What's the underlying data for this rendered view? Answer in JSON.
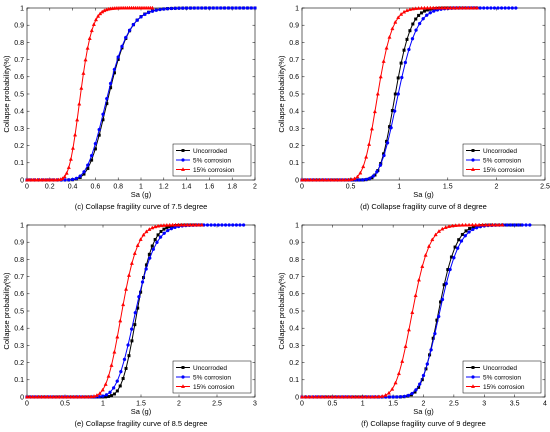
{
  "figure": {
    "ylabel": "Collapse probability(%)",
    "xlabel": "Sa (g)"
  },
  "legend": {
    "entries": [
      {
        "name": "Uncorroded",
        "color": "#000000",
        "marker": "square"
      },
      {
        "name": "5% corrosion",
        "color": "#0000ff",
        "marker": "circle"
      },
      {
        "name": "15% corrosion",
        "color": "#ff0000",
        "marker": "triangle"
      }
    ]
  },
  "chart_data": [
    {
      "type": "line",
      "title": "(c) Collapse fragility curve of 7.5 degree",
      "xlabel": "Sa (g)",
      "ylabel": "Collapse probability(%)",
      "xlim": [
        0,
        2
      ],
      "ylim": [
        0,
        1
      ],
      "xticks": [
        "0",
        "0.2",
        "0.4",
        "0.6",
        "0.8",
        "1",
        "1.2",
        "1.4",
        "1.6",
        "1.8",
        "2"
      ],
      "yticks": [
        "0",
        "0.1",
        "0.2",
        "0.3",
        "0.4",
        "0.5",
        "0.6",
        "0.7",
        "0.8",
        "0.9",
        "1"
      ],
      "legend_position": "bottom-right",
      "series": [
        {
          "name": "Uncorroded",
          "x_max": 2.0,
          "median": 0.72,
          "beta": 0.2
        },
        {
          "name": "5% corrosion",
          "x_max": 2.0,
          "median": 0.71,
          "beta": 0.21
        },
        {
          "name": "15% corrosion",
          "x_max": 1.1,
          "median": 0.47,
          "beta": 0.17
        }
      ]
    },
    {
      "type": "line",
      "title": "(d) Collapse fragility curve of 8 degree",
      "xlabel": "Sa (g)",
      "ylabel": "Collapse probability(%)",
      "xlim": [
        0,
        2.5
      ],
      "ylim": [
        0,
        1
      ],
      "xticks": [
        "0",
        "0.5",
        "1",
        "1.5",
        "2",
        "2.5"
      ],
      "yticks": [
        "0",
        "0.1",
        "0.2",
        "0.3",
        "0.4",
        "0.5",
        "0.6",
        "0.7",
        "0.8",
        "0.9",
        "1"
      ],
      "legend_position": "bottom-right",
      "series": [
        {
          "name": "Uncorroded",
          "x_max": 1.8,
          "median": 0.96,
          "beta": 0.13
        },
        {
          "name": "5% corrosion",
          "x_max": 2.2,
          "median": 0.99,
          "beta": 0.15
        },
        {
          "name": "15% corrosion",
          "x_max": 1.8,
          "median": 0.78,
          "beta": 0.15
        }
      ]
    },
    {
      "type": "line",
      "title": "(e) Collapse fragility curve of 8.5 degree",
      "xlabel": "Sa (g)",
      "ylabel": "Collapse probability(%)",
      "xlim": [
        0,
        3
      ],
      "ylim": [
        0,
        1
      ],
      "xticks": [
        "0",
        "0.5",
        "1",
        "1.5",
        "2",
        "2.5",
        "3"
      ],
      "yticks": [
        "0",
        "0.1",
        "0.2",
        "0.3",
        "0.4",
        "0.5",
        "0.6",
        "0.7",
        "0.8",
        "0.9",
        "1"
      ],
      "legend_position": "bottom-right",
      "series": [
        {
          "name": "Uncorroded",
          "x_max": 2.3,
          "median": 1.45,
          "beta": 0.11
        },
        {
          "name": "5% corrosion",
          "x_max": 2.85,
          "median": 1.43,
          "beta": 0.14
        },
        {
          "name": "15% corrosion",
          "x_max": 2.3,
          "median": 1.25,
          "beta": 0.13
        }
      ]
    },
    {
      "type": "line",
      "title": "(f) Collapse fragility curve of 9 degree",
      "xlabel": "Sa (g)",
      "ylabel": "Collapse probability(%)",
      "xlim": [
        0,
        4
      ],
      "ylim": [
        0,
        1
      ],
      "xticks": [
        "0",
        "0.5",
        "1",
        "1.5",
        "2",
        "2.5",
        "3",
        "3.5",
        "4"
      ],
      "yticks": [
        "0",
        "0.1",
        "0.2",
        "0.3",
        "0.4",
        "0.5",
        "0.6",
        "0.7",
        "0.8",
        "0.9",
        "1"
      ],
      "legend_position": "bottom-right",
      "series": [
        {
          "name": "Uncorroded",
          "x_max": 3.6,
          "median": 2.25,
          "beta": 0.1
        },
        {
          "name": "5% corrosion",
          "x_max": 3.75,
          "median": 2.27,
          "beta": 0.11
        },
        {
          "name": "15% corrosion",
          "x_max": 3.3,
          "median": 1.82,
          "beta": 0.12
        }
      ]
    }
  ]
}
